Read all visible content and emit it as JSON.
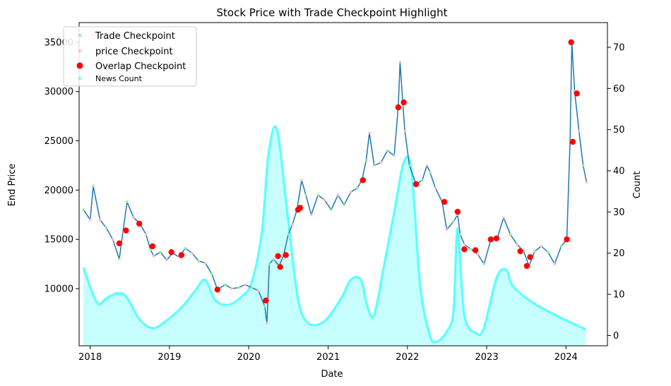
{
  "chart_data": {
    "type": "line",
    "title": "Stock Price with Trade Checkpoint Highlight",
    "xlabel": "Date",
    "ylabel": "End Price",
    "y2label": "Count",
    "xlim": [
      "2017-11-11",
      "2024-07-10"
    ],
    "ylim": [
      4200,
      37000
    ],
    "y2lim": [
      -2.5,
      76
    ],
    "xticks": [
      "2018",
      "2019",
      "2020",
      "2021",
      "2022",
      "2023",
      "2024"
    ],
    "yticks": [
      10000,
      15000,
      20000,
      25000,
      30000,
      35000
    ],
    "y2ticks": [
      0,
      10,
      20,
      30,
      40,
      50,
      60,
      70
    ],
    "grid": false,
    "legend_position": "top-left",
    "colors": {
      "price_line": "#1f77b4",
      "trade_checkpoint": "#90ee90",
      "price_checkpoint": "#ffb6c1",
      "overlap_checkpoint": "#ff0000",
      "news_count": "#00ffff"
    },
    "legend": [
      {
        "label": "Trade Checkpoint",
        "marker": "small-dot",
        "color": "#90ee90"
      },
      {
        "label": "price Checkpoint",
        "marker": "small-dot",
        "color": "#ffb6c1"
      },
      {
        "label": "Overlap Checkpoint",
        "marker": "dot",
        "color": "#ff0000"
      },
      {
        "label": "News Count",
        "marker": "small-dot",
        "color": "#00ffff"
      }
    ],
    "price_series": {
      "name": "End Price",
      "points": [
        [
          "2017-12-01",
          18000
        ],
        [
          "2018-01-01",
          17000
        ],
        [
          "2018-01-15",
          20400
        ],
        [
          "2018-02-15",
          17000
        ],
        [
          "2018-03-15",
          16200
        ],
        [
          "2018-04-15",
          15000
        ],
        [
          "2018-05-15",
          13000
        ],
        [
          "2018-06-01",
          15800
        ],
        [
          "2018-06-20",
          18800
        ],
        [
          "2018-07-20",
          17200
        ],
        [
          "2018-08-15",
          16700
        ],
        [
          "2018-09-15",
          15500
        ],
        [
          "2018-10-05",
          14000
        ],
        [
          "2018-10-20",
          13300
        ],
        [
          "2018-11-20",
          13700
        ],
        [
          "2018-12-20",
          12900
        ],
        [
          "2019-01-15",
          13600
        ],
        [
          "2019-02-15",
          13200
        ],
        [
          "2019-03-15",
          14100
        ],
        [
          "2019-04-15",
          13600
        ],
        [
          "2019-05-15",
          12800
        ],
        [
          "2019-06-15",
          12600
        ],
        [
          "2019-07-15",
          11500
        ],
        [
          "2019-08-10",
          9900
        ],
        [
          "2019-09-15",
          10400
        ],
        [
          "2019-10-15",
          10000
        ],
        [
          "2019-11-15",
          10100
        ],
        [
          "2019-12-15",
          10400
        ],
        [
          "2020-01-15",
          10100
        ],
        [
          "2020-02-15",
          9800
        ],
        [
          "2020-03-15",
          8200
        ],
        [
          "2020-03-25",
          6500
        ],
        [
          "2020-04-05",
          12500
        ],
        [
          "2020-04-25",
          13000
        ],
        [
          "2020-05-20",
          12300
        ],
        [
          "2020-06-10",
          13400
        ],
        [
          "2020-07-01",
          15500
        ],
        [
          "2020-07-20",
          16500
        ],
        [
          "2020-08-10",
          18000
        ],
        [
          "2020-09-01",
          21000
        ],
        [
          "2020-09-20",
          19500
        ],
        [
          "2020-10-15",
          17500
        ],
        [
          "2020-11-15",
          19500
        ],
        [
          "2020-12-15",
          19000
        ],
        [
          "2021-01-15",
          18000
        ],
        [
          "2021-02-15",
          19500
        ],
        [
          "2021-03-15",
          18500
        ],
        [
          "2021-04-15",
          19800
        ],
        [
          "2021-05-15",
          20200
        ],
        [
          "2021-06-05",
          21000
        ],
        [
          "2021-06-25",
          23000
        ],
        [
          "2021-07-10",
          25800
        ],
        [
          "2021-08-01",
          22500
        ],
        [
          "2021-09-01",
          22800
        ],
        [
          "2021-10-01",
          24000
        ],
        [
          "2021-11-01",
          23500
        ],
        [
          "2021-11-20",
          28500
        ],
        [
          "2021-11-28",
          33000
        ],
        [
          "2021-12-10",
          29000
        ],
        [
          "2021-12-20",
          26000
        ],
        [
          "2022-01-10",
          22500
        ],
        [
          "2022-02-10",
          20600
        ],
        [
          "2022-03-10",
          21000
        ],
        [
          "2022-04-01",
          22500
        ],
        [
          "2022-04-15",
          21800
        ],
        [
          "2022-05-10",
          20200
        ],
        [
          "2022-06-10",
          18800
        ],
        [
          "2022-07-01",
          16000
        ],
        [
          "2022-08-01",
          16800
        ],
        [
          "2022-08-20",
          17500
        ],
        [
          "2022-09-01",
          15500
        ],
        [
          "2022-09-20",
          14500
        ],
        [
          "2022-10-20",
          14000
        ],
        [
          "2022-11-20",
          13500
        ],
        [
          "2022-12-20",
          12500
        ],
        [
          "2023-01-20",
          15000
        ],
        [
          "2023-02-20",
          15200
        ],
        [
          "2023-03-20",
          17200
        ],
        [
          "2023-04-20",
          15500
        ],
        [
          "2023-05-20",
          14500
        ],
        [
          "2023-06-20",
          13800
        ],
        [
          "2023-07-15",
          12300
        ],
        [
          "2023-08-10",
          13800
        ],
        [
          "2023-09-10",
          14300
        ],
        [
          "2023-10-10",
          13700
        ],
        [
          "2023-11-10",
          12500
        ],
        [
          "2023-12-10",
          14300
        ],
        [
          "2024-01-05",
          15000
        ],
        [
          "2024-01-20",
          25000
        ],
        [
          "2024-01-28",
          35000
        ],
        [
          "2024-02-10",
          30000
        ],
        [
          "2024-03-01",
          26000
        ],
        [
          "2024-03-20",
          22500
        ],
        [
          "2024-04-05",
          20800
        ]
      ]
    },
    "overlap_checkpoints": [
      [
        "2018-05-15",
        14600
      ],
      [
        "2018-06-15",
        15900
      ],
      [
        "2018-08-15",
        16600
      ],
      [
        "2018-10-15",
        14300
      ],
      [
        "2019-01-10",
        13700
      ],
      [
        "2019-02-25",
        13400
      ],
      [
        "2019-08-10",
        9900
      ],
      [
        "2020-03-20",
        8800
      ],
      [
        "2020-05-15",
        13300
      ],
      [
        "2020-05-25",
        12200
      ],
      [
        "2020-06-20",
        13400
      ],
      [
        "2020-08-15",
        18000
      ],
      [
        "2020-08-25",
        18200
      ],
      [
        "2021-06-10",
        21000
      ],
      [
        "2021-11-20",
        28400
      ],
      [
        "2021-12-15",
        28900
      ],
      [
        "2022-02-10",
        20600
      ],
      [
        "2022-06-20",
        18800
      ],
      [
        "2022-08-20",
        17800
      ],
      [
        "2022-09-20",
        14000
      ],
      [
        "2022-11-10",
        13900
      ],
      [
        "2023-01-20",
        15000
      ],
      [
        "2023-02-15",
        15100
      ],
      [
        "2023-06-05",
        13800
      ],
      [
        "2023-07-05",
        12300
      ],
      [
        "2023-07-20",
        13200
      ],
      [
        "2024-01-05",
        15000
      ],
      [
        "2024-01-25",
        35000
      ],
      [
        "2024-02-01",
        24900
      ],
      [
        "2024-02-20",
        29800
      ]
    ],
    "news_count_series": {
      "name": "News Count",
      "points": [
        [
          "2017-12-01",
          16.5
        ],
        [
          "2018-02-01",
          8
        ],
        [
          "2018-03-15",
          9
        ],
        [
          "2018-05-01",
          10.2
        ],
        [
          "2018-06-15",
          9.5
        ],
        [
          "2018-08-15",
          4
        ],
        [
          "2018-10-15",
          1.8
        ],
        [
          "2018-12-15",
          3.5
        ],
        [
          "2019-03-01",
          7
        ],
        [
          "2019-05-01",
          11
        ],
        [
          "2019-06-15",
          13.5
        ],
        [
          "2019-08-01",
          8.5
        ],
        [
          "2019-10-01",
          7.5
        ],
        [
          "2019-12-01",
          9.5
        ],
        [
          "2020-01-15",
          13
        ],
        [
          "2020-03-01",
          25
        ],
        [
          "2020-04-01",
          44
        ],
        [
          "2020-05-10",
          50
        ],
        [
          "2020-07-01",
          28
        ],
        [
          "2020-08-15",
          9
        ],
        [
          "2020-10-01",
          3
        ],
        [
          "2020-12-15",
          3.5
        ],
        [
          "2021-03-01",
          9
        ],
        [
          "2021-04-15",
          13.5
        ],
        [
          "2021-06-01",
          13.5
        ],
        [
          "2021-07-01",
          7
        ],
        [
          "2021-08-01",
          5
        ],
        [
          "2021-09-15",
          17
        ],
        [
          "2021-11-01",
          30
        ],
        [
          "2021-12-15",
          42
        ],
        [
          "2022-01-20",
          40
        ],
        [
          "2022-03-01",
          12
        ],
        [
          "2022-04-15",
          0
        ],
        [
          "2022-05-15",
          -1.5
        ],
        [
          "2022-07-01",
          1
        ],
        [
          "2022-08-01",
          6
        ],
        [
          "2022-08-20",
          26
        ],
        [
          "2022-09-20",
          5
        ],
        [
          "2022-11-15",
          0.5
        ],
        [
          "2022-12-20",
          2
        ],
        [
          "2023-02-15",
          14
        ],
        [
          "2023-04-01",
          16
        ],
        [
          "2023-05-01",
          12
        ],
        [
          "2023-08-01",
          8
        ],
        [
          "2023-12-01",
          4.5
        ],
        [
          "2024-04-01",
          1.5
        ]
      ]
    }
  }
}
